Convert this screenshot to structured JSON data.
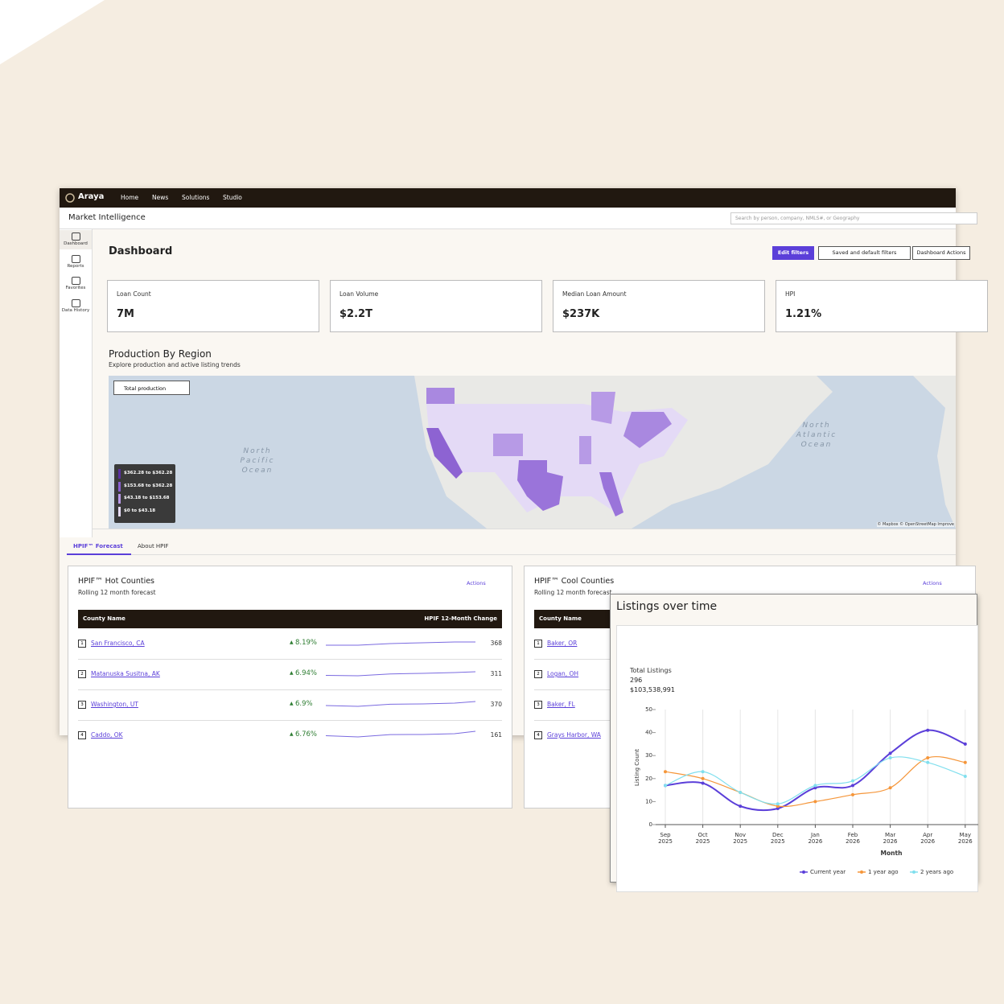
{
  "app": {
    "brand": "Araya",
    "nav": [
      "Home",
      "News",
      "Solutions",
      "Studio"
    ],
    "section": "Market Intelligence",
    "search_placeholder": "Search by person, company, NMLS#, or Geography",
    "sidebar": [
      "Dashboard",
      "Reports",
      "Favorites",
      "Data History"
    ]
  },
  "dashboard": {
    "title": "Dashboard",
    "buttons": [
      "Edit filters",
      "Saved and default filters",
      "Dashboard Actions"
    ],
    "kpis": [
      {
        "label": "Loan Count",
        "value": "7M"
      },
      {
        "label": "Loan Volume",
        "value": "$2.2T"
      },
      {
        "label": "Median Loan Amount",
        "value": "$237K"
      },
      {
        "label": "HPI",
        "value": "1.21%"
      }
    ]
  },
  "region": {
    "title": "Production By Region",
    "subtitle": "Explore production and active listing trends",
    "dropdown": "Total production",
    "ocean_labels": [
      "North Pacific Ocean",
      "North Atlantic Ocean"
    ],
    "legend": [
      "$362.28 to $362.28",
      "$153.68 to $362.28",
      "$43.18 to $153.68",
      "$0 to $43.18"
    ],
    "attribution": "© Mapbox © OpenStreetMap Improve"
  },
  "tabs": [
    "HPIF™ Forecast",
    "About HPIF"
  ],
  "tables": [
    {
      "title": "HPIF™ Hot Counties",
      "subtitle": "Rolling 12 month forecast",
      "actions": "Actions",
      "columns": [
        "County Name",
        "HPIF 12-Month Change"
      ],
      "rows": [
        {
          "rank": 1,
          "county": "San Francisco, CA",
          "change": "8.19%",
          "value": 368
        },
        {
          "rank": 2,
          "county": "Matanuska Susitna, AK",
          "change": "6.94%",
          "value": 311
        },
        {
          "rank": 3,
          "county": "Washington, UT",
          "change": "6.9%",
          "value": 370
        },
        {
          "rank": 4,
          "county": "Caddo, OK",
          "change": "6.76%",
          "value": 161
        }
      ]
    },
    {
      "title": "HPIF™ Cool Counties",
      "subtitle": "Rolling 12 month forecast",
      "actions": "Actions",
      "columns": [
        "County Name"
      ],
      "rows": [
        {
          "rank": 1,
          "county": "Baker, OR"
        },
        {
          "rank": 2,
          "county": "Logan, OH"
        },
        {
          "rank": 3,
          "county": "Baker, FL"
        },
        {
          "rank": 4,
          "county": "Grays Harbor, WA"
        }
      ]
    }
  ],
  "listings_card": {
    "title": "Listings over time",
    "summary_label": "Total Listings",
    "summary_count": 296,
    "summary_amount": "$103,538,991"
  },
  "chart_data": {
    "type": "line",
    "x_label": "Month",
    "y_label": "Listing Count",
    "categories": [
      "Sep 2025",
      "Oct 2025",
      "Nov 2025",
      "Dec 2025",
      "Jan 2026",
      "Feb 2026",
      "Mar 2026",
      "Apr 2026",
      "May 2026"
    ],
    "series": [
      {
        "name": "Current year",
        "color": "#5b3fd9",
        "values": [
          17,
          18,
          8,
          7,
          16,
          17,
          31,
          41,
          35
        ]
      },
      {
        "name": "1 year ago",
        "color": "#f5963a",
        "values": [
          23,
          20,
          14,
          8,
          10,
          13,
          16,
          29,
          27
        ]
      },
      {
        "name": "2 years ago",
        "color": "#80dfee",
        "values": [
          17,
          23,
          14,
          9,
          17,
          19,
          29,
          27,
          21
        ]
      }
    ],
    "ylim": [
      0,
      50
    ],
    "yticks": [
      0,
      10,
      20,
      30,
      40,
      50
    ],
    "grid": true,
    "legend": "bottom"
  }
}
